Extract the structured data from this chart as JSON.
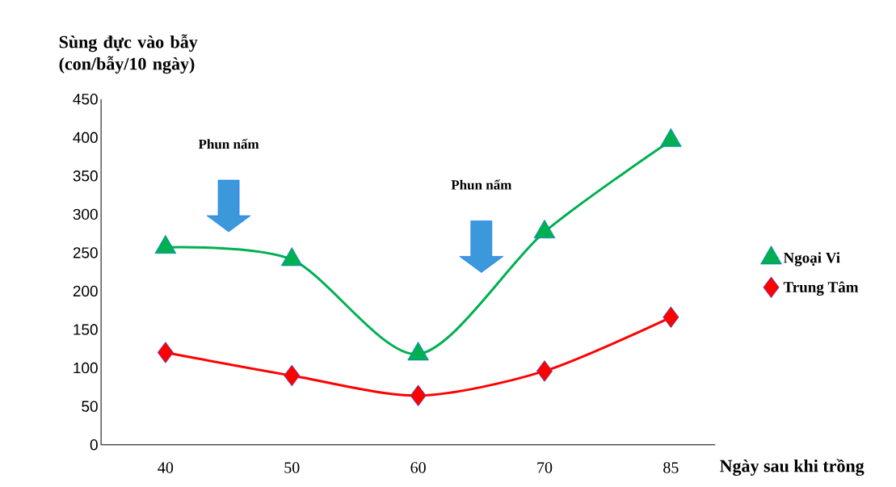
{
  "chart_data": {
    "type": "line",
    "ylabel": "Sùng đực vào bẫy (con/bẫy/10 ngày)",
    "xlabel": "Ngày sau khi trồng",
    "categories": [
      "40",
      "50",
      "60",
      "70",
      "85"
    ],
    "series": [
      {
        "name": "Ngoại Vi",
        "color": "#00b050",
        "marker": "triangle",
        "values": [
          257,
          241,
          118,
          277,
          396
        ]
      },
      {
        "name": "Trung Tâm",
        "color": "#ff0000",
        "marker": "diamond",
        "values": [
          120,
          90,
          64,
          96,
          166
        ]
      }
    ],
    "ylim": [
      0,
      450
    ],
    "yticks": [
      0,
      50,
      100,
      150,
      200,
      250,
      300,
      350,
      400,
      450
    ],
    "annotations": [
      "Phun nấm",
      "Phun nấm"
    ],
    "legend": "right",
    "grid": false
  }
}
